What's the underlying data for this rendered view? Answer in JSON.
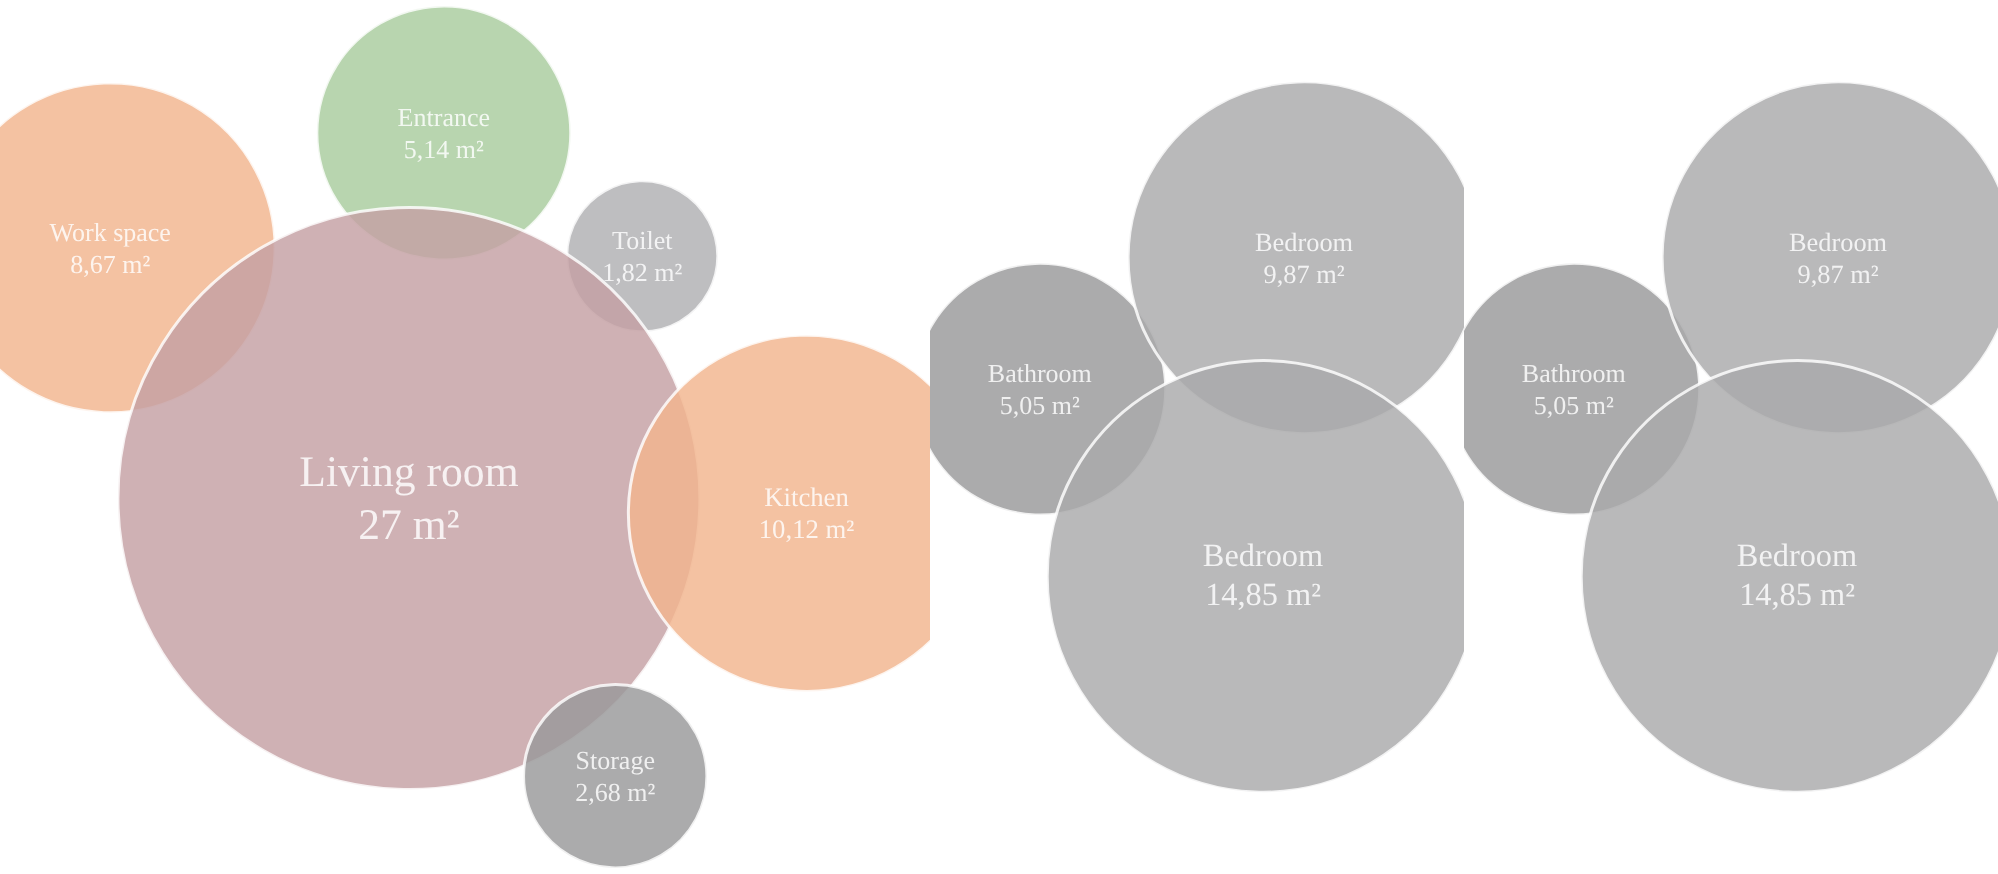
{
  "chart_data": [
    {
      "type": "other",
      "categories": [
        "Work space",
        "Entrance",
        "Toilet",
        "Living room",
        "Kitchen",
        "Storage"
      ],
      "values": [
        8.67,
        5.14,
        1.82,
        27,
        10.12,
        2.68
      ],
      "value_labels": [
        "8,67 m²",
        "5,14 m²",
        "1,82 m²",
        "27 m²",
        "10,12 m²",
        "2,68 m²"
      ],
      "colors": [
        "#f2b48e",
        "#a8cc9e",
        "#b0b0b2",
        "#c4a0a4",
        "#f2b48e",
        "#98989a"
      ]
    },
    {
      "type": "other",
      "categories": [
        "Bathroom",
        "Bedroom",
        "Bedroom"
      ],
      "values": [
        5.05,
        9.87,
        14.85
      ],
      "value_labels": [
        "5,05 m²",
        "9,87 m²",
        "14,85 m²"
      ],
      "colors": [
        "#98989a",
        "#a9a9ab",
        "#a9a9ab"
      ]
    },
    {
      "type": "other",
      "categories": [
        "Bathroom",
        "Bedroom",
        "Bedroom"
      ],
      "values": [
        5.05,
        9.87,
        14.85
      ],
      "value_labels": [
        "5,05 m²",
        "9,87 m²",
        "14,85 m²"
      ],
      "colors": [
        "#98989a",
        "#a9a9ab",
        "#a9a9ab"
      ]
    }
  ]
}
